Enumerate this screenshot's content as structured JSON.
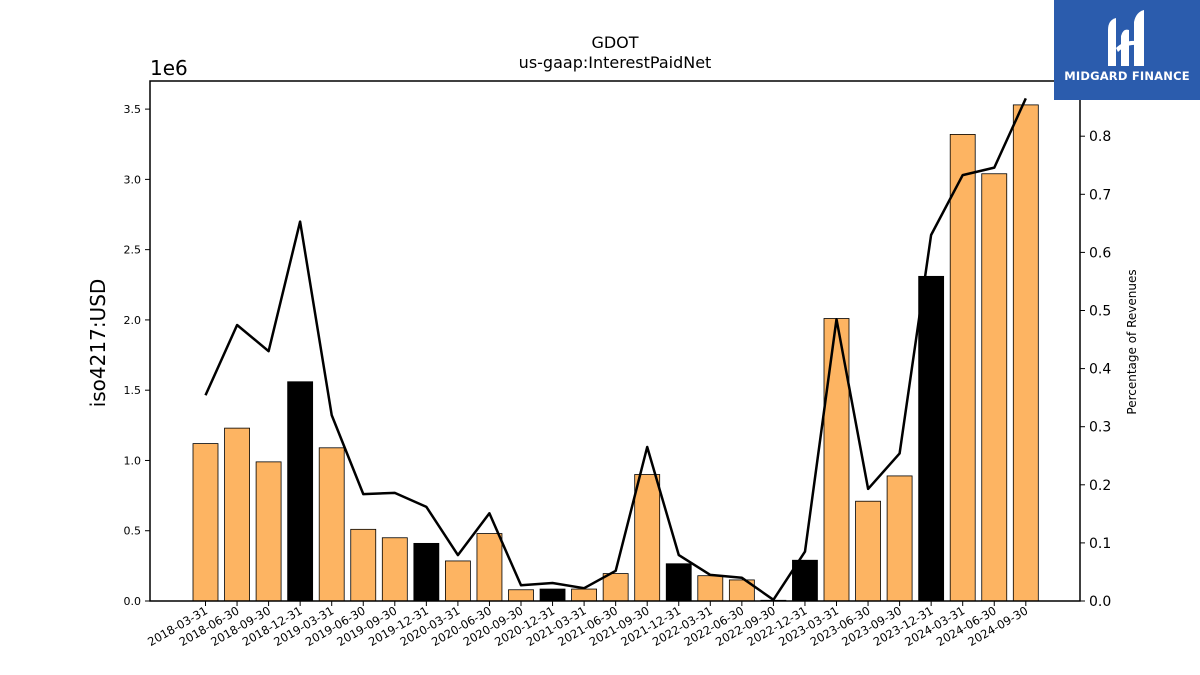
{
  "logo": {
    "text": "MIDGARD FINANCE"
  },
  "colors": {
    "normal_bar": "#fdb462",
    "q4_bar": "#000000",
    "line": "#000000"
  },
  "chart_data": {
    "type": "bar",
    "title": "GDOT",
    "subtitle": "us-gaap:InterestPaidNet",
    "ylabel": "iso4217:USD",
    "y_offset_label": "1e6",
    "y2label": "Percentage of Revenues",
    "ylim": [
      0,
      3700000
    ],
    "y2lim": [
      0,
      0.895
    ],
    "yticks": [
      "0.0",
      "0.5",
      "1.0",
      "1.5",
      "2.0",
      "2.5",
      "3.0",
      "3.5"
    ],
    "y2ticks": [
      "0.0",
      "0.1",
      "0.2",
      "0.3",
      "0.4",
      "0.5",
      "0.6",
      "0.7",
      "0.8"
    ],
    "categories": [
      "2018-03-31",
      "2018-06-30",
      "2018-09-30",
      "2018-12-31",
      "2019-03-31",
      "2019-06-30",
      "2019-09-30",
      "2019-12-31",
      "2020-03-31",
      "2020-06-30",
      "2020-09-30",
      "2020-12-31",
      "2021-03-31",
      "2021-06-30",
      "2021-09-30",
      "2021-12-31",
      "2022-03-31",
      "2022-06-30",
      "2022-09-30",
      "2022-12-31",
      "2023-03-31",
      "2023-06-30",
      "2023-09-30",
      "2023-12-31",
      "2024-03-31",
      "2024-06-30",
      "2024-09-30"
    ],
    "series": [
      {
        "type": "bar",
        "values": [
          1120000,
          1230000,
          990000,
          1560000,
          1090000,
          510000,
          450000,
          410000,
          285000,
          480000,
          80000,
          85000,
          85000,
          195000,
          900000,
          265000,
          180000,
          150000,
          5000,
          290000,
          2010000,
          710000,
          890000,
          2310000,
          3320000,
          3040000,
          3530000
        ],
        "highlight_q4": true
      },
      {
        "type": "line",
        "axis": "right",
        "values": [
          0.354,
          0.475,
          0.43,
          0.653,
          0.32,
          0.184,
          0.186,
          0.162,
          0.079,
          0.151,
          0.027,
          0.031,
          0.022,
          0.052,
          0.265,
          0.079,
          0.045,
          0.04,
          0.002,
          0.085,
          0.485,
          0.193,
          0.254,
          0.63,
          0.733,
          0.746,
          0.865
        ]
      }
    ],
    "grid": false,
    "legend": "none"
  }
}
